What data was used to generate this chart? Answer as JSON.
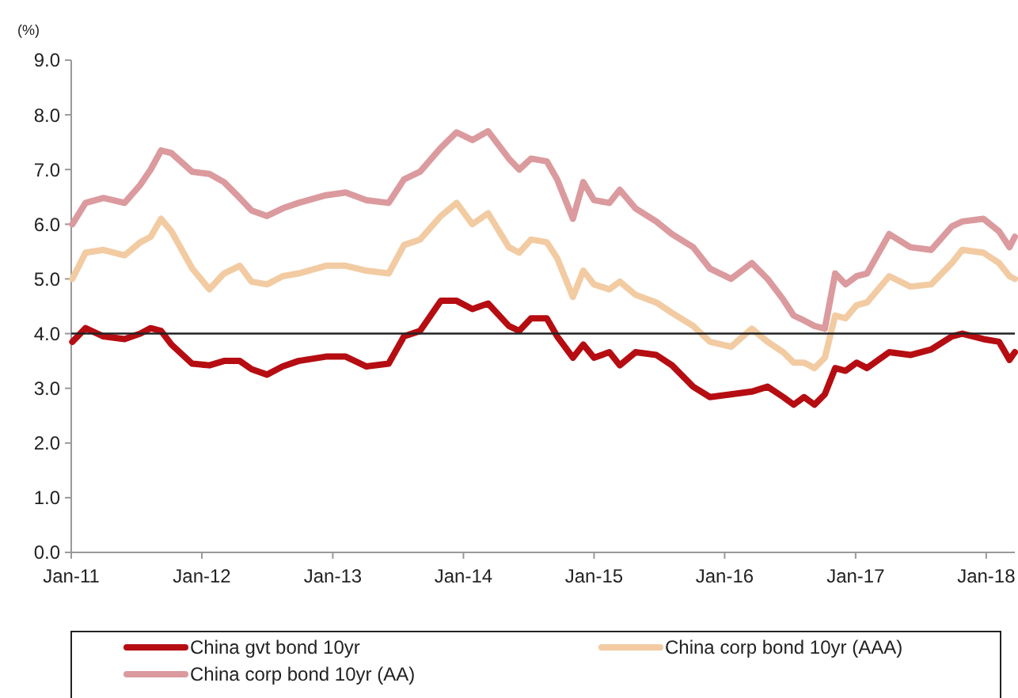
{
  "chart_data": {
    "type": "line",
    "ylabel": "(%)",
    "x": [
      "2011-01-04",
      "2011-02-10",
      "2011-04-01",
      "2011-05-30",
      "2011-07-13",
      "2011-08-11",
      "2011-09-09",
      "2011-10-08",
      "2011-12-05",
      "2012-01-22",
      "2012-03-03",
      "2012-04-16",
      "2012-05-19",
      "2012-07-01",
      "2012-08-14",
      "2012-09-27",
      "2012-12-13",
      "2013-02-06",
      "2013-04-05",
      "2013-06-06",
      "2013-07-19",
      "2013-09-02",
      "2013-10-30",
      "2013-12-13",
      "2014-01-26",
      "2014-03-11",
      "2014-05-08",
      "2014-06-06",
      "2014-07-09",
      "2014-08-22",
      "2014-09-20",
      "2014-11-03",
      "2014-12-02",
      "2015-01-01",
      "2015-02-13",
      "2015-03-14",
      "2015-04-27",
      "2015-06-24",
      "2015-08-07",
      "2015-10-05",
      "2015-11-21",
      "2016-01-19",
      "2016-03-17",
      "2016-04-30",
      "2016-06-13",
      "2016-07-12",
      "2016-08-10",
      "2016-09-08",
      "2016-10-07",
      "2016-11-05",
      "2016-12-04",
      "2017-01-04",
      "2017-02-02",
      "2017-04-05",
      "2017-06-03",
      "2017-07-31",
      "2017-09-27",
      "2017-10-26",
      "2017-12-24",
      "2018-02-06",
      "2018-03-07",
      "2018-03-22"
    ],
    "series": [
      {
        "name": "China gvt bond 10yr",
        "color": "#b50d12",
        "values": [
          3.85,
          4.1,
          3.95,
          3.9,
          4.0,
          4.1,
          4.05,
          3.8,
          3.45,
          3.42,
          3.5,
          3.5,
          3.35,
          3.25,
          3.4,
          3.5,
          3.58,
          3.58,
          3.4,
          3.45,
          3.95,
          4.05,
          4.6,
          4.6,
          4.45,
          4.55,
          4.14,
          4.05,
          4.28,
          4.28,
          3.95,
          3.56,
          3.8,
          3.56,
          3.66,
          3.42,
          3.66,
          3.61,
          3.42,
          3.03,
          2.84,
          2.89,
          2.94,
          3.03,
          2.84,
          2.7,
          2.84,
          2.7,
          2.89,
          3.37,
          3.32,
          3.47,
          3.37,
          3.66,
          3.61,
          3.71,
          3.95,
          4.0,
          3.9,
          3.85,
          3.52,
          3.66
        ]
      },
      {
        "name": "China corp bond 10yr (AAA)",
        "color": "#f2cba2",
        "values": [
          5.0,
          5.48,
          5.53,
          5.43,
          5.67,
          5.77,
          6.1,
          5.87,
          5.19,
          4.81,
          5.1,
          5.24,
          4.95,
          4.9,
          5.05,
          5.1,
          5.24,
          5.24,
          5.15,
          5.1,
          5.62,
          5.72,
          6.15,
          6.39,
          6.0,
          6.2,
          5.58,
          5.48,
          5.72,
          5.67,
          5.38,
          4.67,
          5.15,
          4.9,
          4.81,
          4.95,
          4.71,
          4.57,
          4.38,
          4.14,
          3.85,
          3.76,
          4.09,
          3.85,
          3.66,
          3.47,
          3.47,
          3.37,
          3.56,
          4.33,
          4.28,
          4.52,
          4.57,
          5.05,
          4.86,
          4.9,
          5.29,
          5.53,
          5.48,
          5.29,
          5.05,
          5.0
        ]
      },
      {
        "name": "China corp bond 10yr (AA)",
        "color": "#db9a9e",
        "values": [
          6.0,
          6.39,
          6.48,
          6.39,
          6.72,
          7.0,
          7.35,
          7.3,
          6.96,
          6.92,
          6.77,
          6.48,
          6.25,
          6.15,
          6.29,
          6.39,
          6.53,
          6.58,
          6.44,
          6.39,
          6.82,
          6.96,
          7.4,
          7.68,
          7.54,
          7.7,
          7.2,
          7.0,
          7.2,
          7.15,
          6.82,
          6.1,
          6.77,
          6.44,
          6.39,
          6.63,
          6.29,
          6.05,
          5.82,
          5.58,
          5.19,
          5.0,
          5.29,
          5.0,
          4.62,
          4.33,
          4.24,
          4.14,
          4.09,
          5.1,
          4.9,
          5.05,
          5.1,
          5.82,
          5.58,
          5.53,
          5.96,
          6.05,
          6.1,
          5.87,
          5.58,
          5.77
        ]
      }
    ],
    "xlim": [
      "2011-01-01",
      "2018-03-22"
    ],
    "xticks": [
      {
        "value": "2011-01-01",
        "label": "Jan-11"
      },
      {
        "value": "2012-01-01",
        "label": "Jan-12"
      },
      {
        "value": "2013-01-01",
        "label": "Jan-13"
      },
      {
        "value": "2014-01-01",
        "label": "Jan-14"
      },
      {
        "value": "2015-01-01",
        "label": "Jan-15"
      },
      {
        "value": "2016-01-01",
        "label": "Jan-16"
      },
      {
        "value": "2017-01-01",
        "label": "Jan-17"
      },
      {
        "value": "2018-01-01",
        "label": "Jan-18"
      }
    ],
    "ylim": [
      0,
      9
    ],
    "yticks": [
      {
        "value": 0,
        "label": "0.0"
      },
      {
        "value": 1,
        "label": "1.0"
      },
      {
        "value": 2,
        "label": "2.0"
      },
      {
        "value": 3,
        "label": "3.0"
      },
      {
        "value": 4,
        "label": "4.0"
      },
      {
        "value": 5,
        "label": "5.0"
      },
      {
        "value": 6,
        "label": "6.0"
      },
      {
        "value": 7,
        "label": "7.0"
      },
      {
        "value": 8,
        "label": "8.0"
      },
      {
        "value": 9,
        "label": "9.0"
      }
    ],
    "ref_lines": [
      {
        "axis": "y",
        "value": 4,
        "color": "#222222"
      }
    ],
    "legend": "bottom",
    "grid": false,
    "line_style": "solid",
    "marker": "none"
  }
}
